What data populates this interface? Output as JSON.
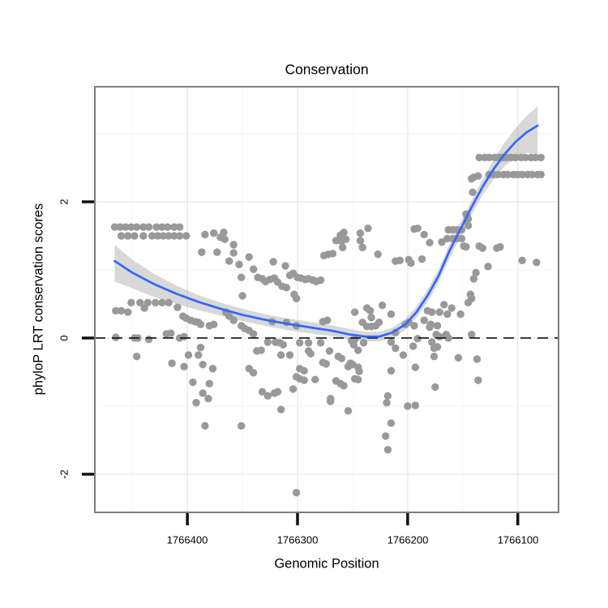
{
  "title": "Conservation",
  "axes": {
    "x": {
      "label": "Genomic Position",
      "ticks": [
        1766400,
        1766300,
        1766200,
        1766100
      ],
      "tick_labels": [
        "1766400",
        "1766300",
        "1766200",
        "1766100"
      ],
      "reversed": true
    },
    "y": {
      "label": "phyloP LRT conservation scores",
      "ticks": [
        -2,
        0,
        2
      ],
      "tick_labels": [
        "-2",
        "0",
        "2"
      ]
    }
  },
  "colors": {
    "point": "#999999",
    "smooth_line": "#3366FF",
    "ribbon": "rgba(153,153,153,0.38)",
    "panel_border": "#7d7d7d",
    "grid_major": "#e9e9e9",
    "grid_minor": "#f5f5f5",
    "reference_line": "#111111",
    "tick_mark": "#111111",
    "text": "#000000"
  },
  "chart_data": {
    "type": "scatter",
    "title": "Conservation",
    "xlabel": "Genomic Position",
    "ylabel": "phyloP LRT conservation scores",
    "x_reversed": true,
    "xlim": [
      1766484,
      1766063
    ],
    "ylim": [
      -2.56,
      3.69
    ],
    "x_major_gridlines": [
      1766400,
      1766300,
      1766200,
      1766100
    ],
    "x_minor_gridlines": [
      1766450,
      1766350,
      1766250,
      1766150
    ],
    "y_major_gridlines": [
      -2,
      0,
      2
    ],
    "y_minor_gridlines": [
      -1,
      1,
      3
    ],
    "reference_hline": {
      "y": 0,
      "linetype": "dashed"
    },
    "legend": "none",
    "points": [
      [
        1766466,
        1.63
      ],
      [
        1766461,
        1.63
      ],
      [
        1766456,
        1.63
      ],
      [
        1766451,
        1.63
      ],
      [
        1766446,
        1.63
      ],
      [
        1766440,
        1.63
      ],
      [
        1766435,
        1.63
      ],
      [
        1766428,
        1.63
      ],
      [
        1766423,
        1.63
      ],
      [
        1766418,
        1.63
      ],
      [
        1766412,
        1.63
      ],
      [
        1766407,
        1.63
      ],
      [
        1766460,
        1.5
      ],
      [
        1766454,
        1.5
      ],
      [
        1766448,
        1.5
      ],
      [
        1766440,
        1.5
      ],
      [
        1766432,
        1.5
      ],
      [
        1766427,
        1.5
      ],
      [
        1766422,
        1.5
      ],
      [
        1766417,
        1.5
      ],
      [
        1766412,
        1.5
      ],
      [
        1766407,
        1.5
      ],
      [
        1766401,
        1.5
      ],
      [
        1766384,
        1.52
      ],
      [
        1766376,
        1.54
      ],
      [
        1766370,
        1.48
      ],
      [
        1766367,
        1.55
      ],
      [
        1766366,
        1.45
      ],
      [
        1766358,
        1.37
      ],
      [
        1766358,
        1.25
      ],
      [
        1766387,
        1.26
      ],
      [
        1766373,
        1.26
      ],
      [
        1766362,
        1.13
      ],
      [
        1766353,
        1.08
      ],
      [
        1766344,
        1.19
      ],
      [
        1766340,
        1.01
      ],
      [
        1766351,
        0.89
      ],
      [
        1766350,
        0.62
      ],
      [
        1766451,
        0.52
      ],
      [
        1766443,
        0.52
      ],
      [
        1766436,
        0.52
      ],
      [
        1766429,
        0.52
      ],
      [
        1766423,
        0.52
      ],
      [
        1766417,
        0.52
      ],
      [
        1766465,
        0.4
      ],
      [
        1766460,
        0.4
      ],
      [
        1766454,
        0.38
      ],
      [
        1766439,
        0.44
      ],
      [
        1766409,
        0.45
      ],
      [
        1766404,
        0.32
      ],
      [
        1766401,
        0.29
      ],
      [
        1766397,
        0.26
      ],
      [
        1766393,
        0.24
      ],
      [
        1766390,
        0.23
      ],
      [
        1766388,
        0.2
      ],
      [
        1766380,
        0.18
      ],
      [
        1766376,
        0.2
      ],
      [
        1766365,
        0.38
      ],
      [
        1766362,
        0.32
      ],
      [
        1766358,
        0.26
      ],
      [
        1766351,
        0.18
      ],
      [
        1766348,
        0.14
      ],
      [
        1766344,
        0.11
      ],
      [
        1766340,
        0.06
      ],
      [
        1766465,
        0.01
      ],
      [
        1766448,
        0.0
      ],
      [
        1766445,
        0.0
      ],
      [
        1766435,
        -0.02
      ],
      [
        1766419,
        0.06
      ],
      [
        1766415,
        0.07
      ],
      [
        1766407,
        0.0
      ],
      [
        1766403,
        0.02
      ],
      [
        1766388,
        -0.14
      ],
      [
        1766446,
        -0.27
      ],
      [
        1766414,
        -0.37
      ],
      [
        1766403,
        -0.42
      ],
      [
        1766399,
        -0.25
      ],
      [
        1766390,
        -0.25
      ],
      [
        1766386,
        -0.39
      ],
      [
        1766377,
        -0.45
      ],
      [
        1766395,
        -0.65
      ],
      [
        1766380,
        -0.67
      ],
      [
        1766386,
        -0.81
      ],
      [
        1766381,
        -0.89
      ],
      [
        1766392,
        -0.95
      ],
      [
        1766384,
        -1.29
      ],
      [
        1766351,
        -1.29
      ],
      [
        1766344,
        -0.45
      ],
      [
        1766340,
        -0.51
      ],
      [
        1766276,
        1.21
      ],
      [
        1766272,
        1.23
      ],
      [
        1766268,
        1.24
      ],
      [
        1766265,
        1.43
      ],
      [
        1766261,
        1.51
      ],
      [
        1766259,
        1.33
      ],
      [
        1766258,
        1.55
      ],
      [
        1766260,
        1.42
      ],
      [
        1766256,
        1.45
      ],
      [
        1766243,
        1.54
      ],
      [
        1766243,
        1.43
      ],
      [
        1766241,
        1.33
      ],
      [
        1766236,
        1.61
      ],
      [
        1766227,
        1.23
      ],
      [
        1766211,
        1.13
      ],
      [
        1766207,
        1.14
      ],
      [
        1766199,
        1.15
      ],
      [
        1766197,
        1.1
      ],
      [
        1766194,
        1.6
      ],
      [
        1766336,
        0.89
      ],
      [
        1766332,
        0.87
      ],
      [
        1766329,
        0.83
      ],
      [
        1766325,
        0.86
      ],
      [
        1766321,
        0.88
      ],
      [
        1766318,
        0.82
      ],
      [
        1766314,
        0.76
      ],
      [
        1766310,
        0.74
      ],
      [
        1766307,
        0.92
      ],
      [
        1766304,
        0.95
      ],
      [
        1766300,
        0.89
      ],
      [
        1766297,
        0.88
      ],
      [
        1766293,
        0.86
      ],
      [
        1766290,
        0.87
      ],
      [
        1766286,
        0.85
      ],
      [
        1766283,
        0.83
      ],
      [
        1766279,
        0.85
      ],
      [
        1766322,
        1.12
      ],
      [
        1766311,
        1.06
      ],
      [
        1766303,
        0.64
      ],
      [
        1766301,
        0.58
      ],
      [
        1766323,
        0.24
      ],
      [
        1766310,
        0.23
      ],
      [
        1766301,
        0.18
      ],
      [
        1766277,
        0.24
      ],
      [
        1766273,
        0.26
      ],
      [
        1766248,
        0.38
      ],
      [
        1766251,
        -0.04
      ],
      [
        1766248,
        -0.02
      ],
      [
        1766237,
        0.44
      ],
      [
        1766237,
        0.17
      ],
      [
        1766234,
        0.4
      ],
      [
        1766233,
        0.3
      ],
      [
        1766233,
        0.17
      ],
      [
        1766226,
        0.23
      ],
      [
        1766223,
        0.48
      ],
      [
        1766215,
        0.35
      ],
      [
        1766202,
        0.2
      ],
      [
        1766199,
        0.23
      ],
      [
        1766194,
        0.18
      ],
      [
        1766241,
        0.23
      ],
      [
        1766229,
        0.18
      ],
      [
        1766211,
        0.08
      ],
      [
        1766327,
        -0.06
      ],
      [
        1766320,
        -0.06
      ],
      [
        1766316,
        -0.07
      ],
      [
        1766313,
        -0.1
      ],
      [
        1766333,
        -0.18
      ],
      [
        1766337,
        -0.19
      ],
      [
        1766315,
        -0.25
      ],
      [
        1766307,
        -0.25
      ],
      [
        1766298,
        -0.07
      ],
      [
        1766290,
        -0.07
      ],
      [
        1766279,
        -0.07
      ],
      [
        1766290,
        -0.19
      ],
      [
        1766288,
        -0.23
      ],
      [
        1766277,
        -0.36
      ],
      [
        1766274,
        -0.38
      ],
      [
        1766260,
        -0.3
      ],
      [
        1766245,
        -0.18
      ],
      [
        1766252,
        -0.37
      ],
      [
        1766250,
        -0.39
      ],
      [
        1766254,
        -0.42
      ],
      [
        1766265,
        -0.63
      ],
      [
        1766261,
        -0.67
      ],
      [
        1766258,
        -0.7
      ],
      [
        1766248,
        -0.6
      ],
      [
        1766245,
        -0.61
      ],
      [
        1766301,
        -0.57
      ],
      [
        1766298,
        -0.6
      ],
      [
        1766294,
        -0.62
      ],
      [
        1766284,
        -0.61
      ],
      [
        1766332,
        -0.79
      ],
      [
        1766327,
        -0.85
      ],
      [
        1766321,
        -0.81
      ],
      [
        1766318,
        -0.79
      ],
      [
        1766304,
        -0.75
      ],
      [
        1766270,
        -0.89
      ],
      [
        1766254,
        -1.07
      ],
      [
        1766315,
        -1.05
      ],
      [
        1766218,
        -0.85
      ],
      [
        1766219,
        -0.95
      ],
      [
        1766200,
        -1.0
      ],
      [
        1766193,
        -0.99
      ],
      [
        1766215,
        -1.25
      ],
      [
        1766220,
        -1.44
      ],
      [
        1766218,
        -1.64
      ],
      [
        1766301,
        -2.27
      ],
      [
        1766271,
        -0.19
      ],
      [
        1766249,
        -0.1
      ],
      [
        1766240,
        -0.07
      ],
      [
        1766215,
        -0.06
      ],
      [
        1766211,
        -0.15
      ],
      [
        1766195,
        -0.12
      ],
      [
        1766191,
        -0.01
      ],
      [
        1766263,
        -0.27
      ],
      [
        1766204,
        -0.25
      ],
      [
        1766193,
        -0.43
      ],
      [
        1766245,
        -0.43
      ],
      [
        1766244,
        -0.49
      ],
      [
        1766215,
        -0.48
      ],
      [
        1766298,
        -0.45
      ],
      [
        1766294,
        -0.48
      ],
      [
        1766270,
        -0.93
      ],
      [
        1766135,
        2.65
      ],
      [
        1766130,
        2.65
      ],
      [
        1766126,
        2.65
      ],
      [
        1766121,
        2.65
      ],
      [
        1766118,
        2.65
      ],
      [
        1766115,
        2.65
      ],
      [
        1766113,
        2.65
      ],
      [
        1766110,
        2.65
      ],
      [
        1766106,
        2.65
      ],
      [
        1766102,
        2.65
      ],
      [
        1766097,
        2.65
      ],
      [
        1766093,
        2.65
      ],
      [
        1766088,
        2.65
      ],
      [
        1766084,
        2.65
      ],
      [
        1766079,
        2.65
      ],
      [
        1766126,
        2.4
      ],
      [
        1766122,
        2.4
      ],
      [
        1766118,
        2.4
      ],
      [
        1766113,
        2.4
      ],
      [
        1766109,
        2.4
      ],
      [
        1766104,
        2.4
      ],
      [
        1766100,
        2.4
      ],
      [
        1766096,
        2.4
      ],
      [
        1766091,
        2.4
      ],
      [
        1766087,
        2.4
      ],
      [
        1766082,
        2.4
      ],
      [
        1766079,
        2.4
      ],
      [
        1766142,
        2.34
      ],
      [
        1766140,
        2.36
      ],
      [
        1766136,
        2.38
      ],
      [
        1766141,
        2.14
      ],
      [
        1766147,
        1.82
      ],
      [
        1766146,
        1.79
      ],
      [
        1766145,
        1.75
      ],
      [
        1766146,
        1.71
      ],
      [
        1766145,
        1.65
      ],
      [
        1766163,
        1.59
      ],
      [
        1766159,
        1.59
      ],
      [
        1766155,
        1.59
      ],
      [
        1766151,
        1.59
      ],
      [
        1766164,
        1.46
      ],
      [
        1766159,
        1.46
      ],
      [
        1766155,
        1.46
      ],
      [
        1766151,
        1.46
      ],
      [
        1766191,
        1.61
      ],
      [
        1766185,
        1.52
      ],
      [
        1766180,
        1.4
      ],
      [
        1766169,
        1.41
      ],
      [
        1766149,
        1.35
      ],
      [
        1766147,
        1.34
      ],
      [
        1766135,
        1.35
      ],
      [
        1766132,
        1.32
      ],
      [
        1766119,
        1.32
      ],
      [
        1766187,
        1.16
      ],
      [
        1766127,
        1.05
      ],
      [
        1766138,
        0.96
      ],
      [
        1766140,
        0.87
      ],
      [
        1766116,
        1.34
      ],
      [
        1766096,
        1.14
      ],
      [
        1766083,
        1.11
      ],
      [
        1766143,
        0.64
      ],
      [
        1766142,
        0.58
      ],
      [
        1766167,
        0.49
      ],
      [
        1766160,
        0.44
      ],
      [
        1766171,
        0.38
      ],
      [
        1766164,
        0.35
      ],
      [
        1766182,
        0.4
      ],
      [
        1766178,
        0.38
      ],
      [
        1766185,
        0.26
      ],
      [
        1766179,
        0.2
      ],
      [
        1766180,
        0.16
      ],
      [
        1766173,
        0.18
      ],
      [
        1766145,
        0.52
      ],
      [
        1766152,
        0.35
      ],
      [
        1766174,
        0.05
      ],
      [
        1766171,
        0.02
      ],
      [
        1766165,
        0.05
      ],
      [
        1766163,
        0.0
      ],
      [
        1766142,
        0.05
      ],
      [
        1766178,
        -0.06
      ],
      [
        1766176,
        -0.15
      ],
      [
        1766173,
        -0.13
      ],
      [
        1766176,
        -0.27
      ],
      [
        1766154,
        -0.29
      ],
      [
        1766137,
        -0.31
      ],
      [
        1766136,
        -0.62
      ],
      [
        1766175,
        -0.72
      ]
    ],
    "smooth": {
      "name": "loess-fit",
      "x": [
        1766466,
        1766450,
        1766430,
        1766410,
        1766390,
        1766370,
        1766350,
        1766330,
        1766310,
        1766290,
        1766270,
        1766252,
        1766238,
        1766226,
        1766214,
        1766202,
        1766192,
        1766182,
        1766172,
        1766162,
        1766152,
        1766142,
        1766132,
        1766122,
        1766112,
        1766102,
        1766092,
        1766082
      ],
      "y": [
        1.13,
        0.96,
        0.79,
        0.65,
        0.53,
        0.43,
        0.34,
        0.27,
        0.21,
        0.16,
        0.11,
        0.05,
        0.02,
        0.02,
        0.08,
        0.2,
        0.38,
        0.62,
        0.91,
        1.28,
        1.6,
        1.92,
        2.22,
        2.48,
        2.7,
        2.88,
        3.02,
        3.12
      ],
      "upper": [
        1.37,
        1.15,
        0.94,
        0.77,
        0.63,
        0.52,
        0.43,
        0.35,
        0.29,
        0.24,
        0.19,
        0.13,
        0.09,
        0.09,
        0.15,
        0.28,
        0.46,
        0.71,
        1.0,
        1.38,
        1.7,
        2.02,
        2.33,
        2.62,
        2.87,
        3.08,
        3.26,
        3.4
      ],
      "lower": [
        0.83,
        0.73,
        0.6,
        0.5,
        0.41,
        0.33,
        0.25,
        0.18,
        0.12,
        0.07,
        0.03,
        -0.03,
        -0.05,
        -0.05,
        0.0,
        0.12,
        0.3,
        0.53,
        0.81,
        1.17,
        1.49,
        1.81,
        2.1,
        2.33,
        2.52,
        2.65,
        2.72,
        2.7
      ]
    }
  }
}
